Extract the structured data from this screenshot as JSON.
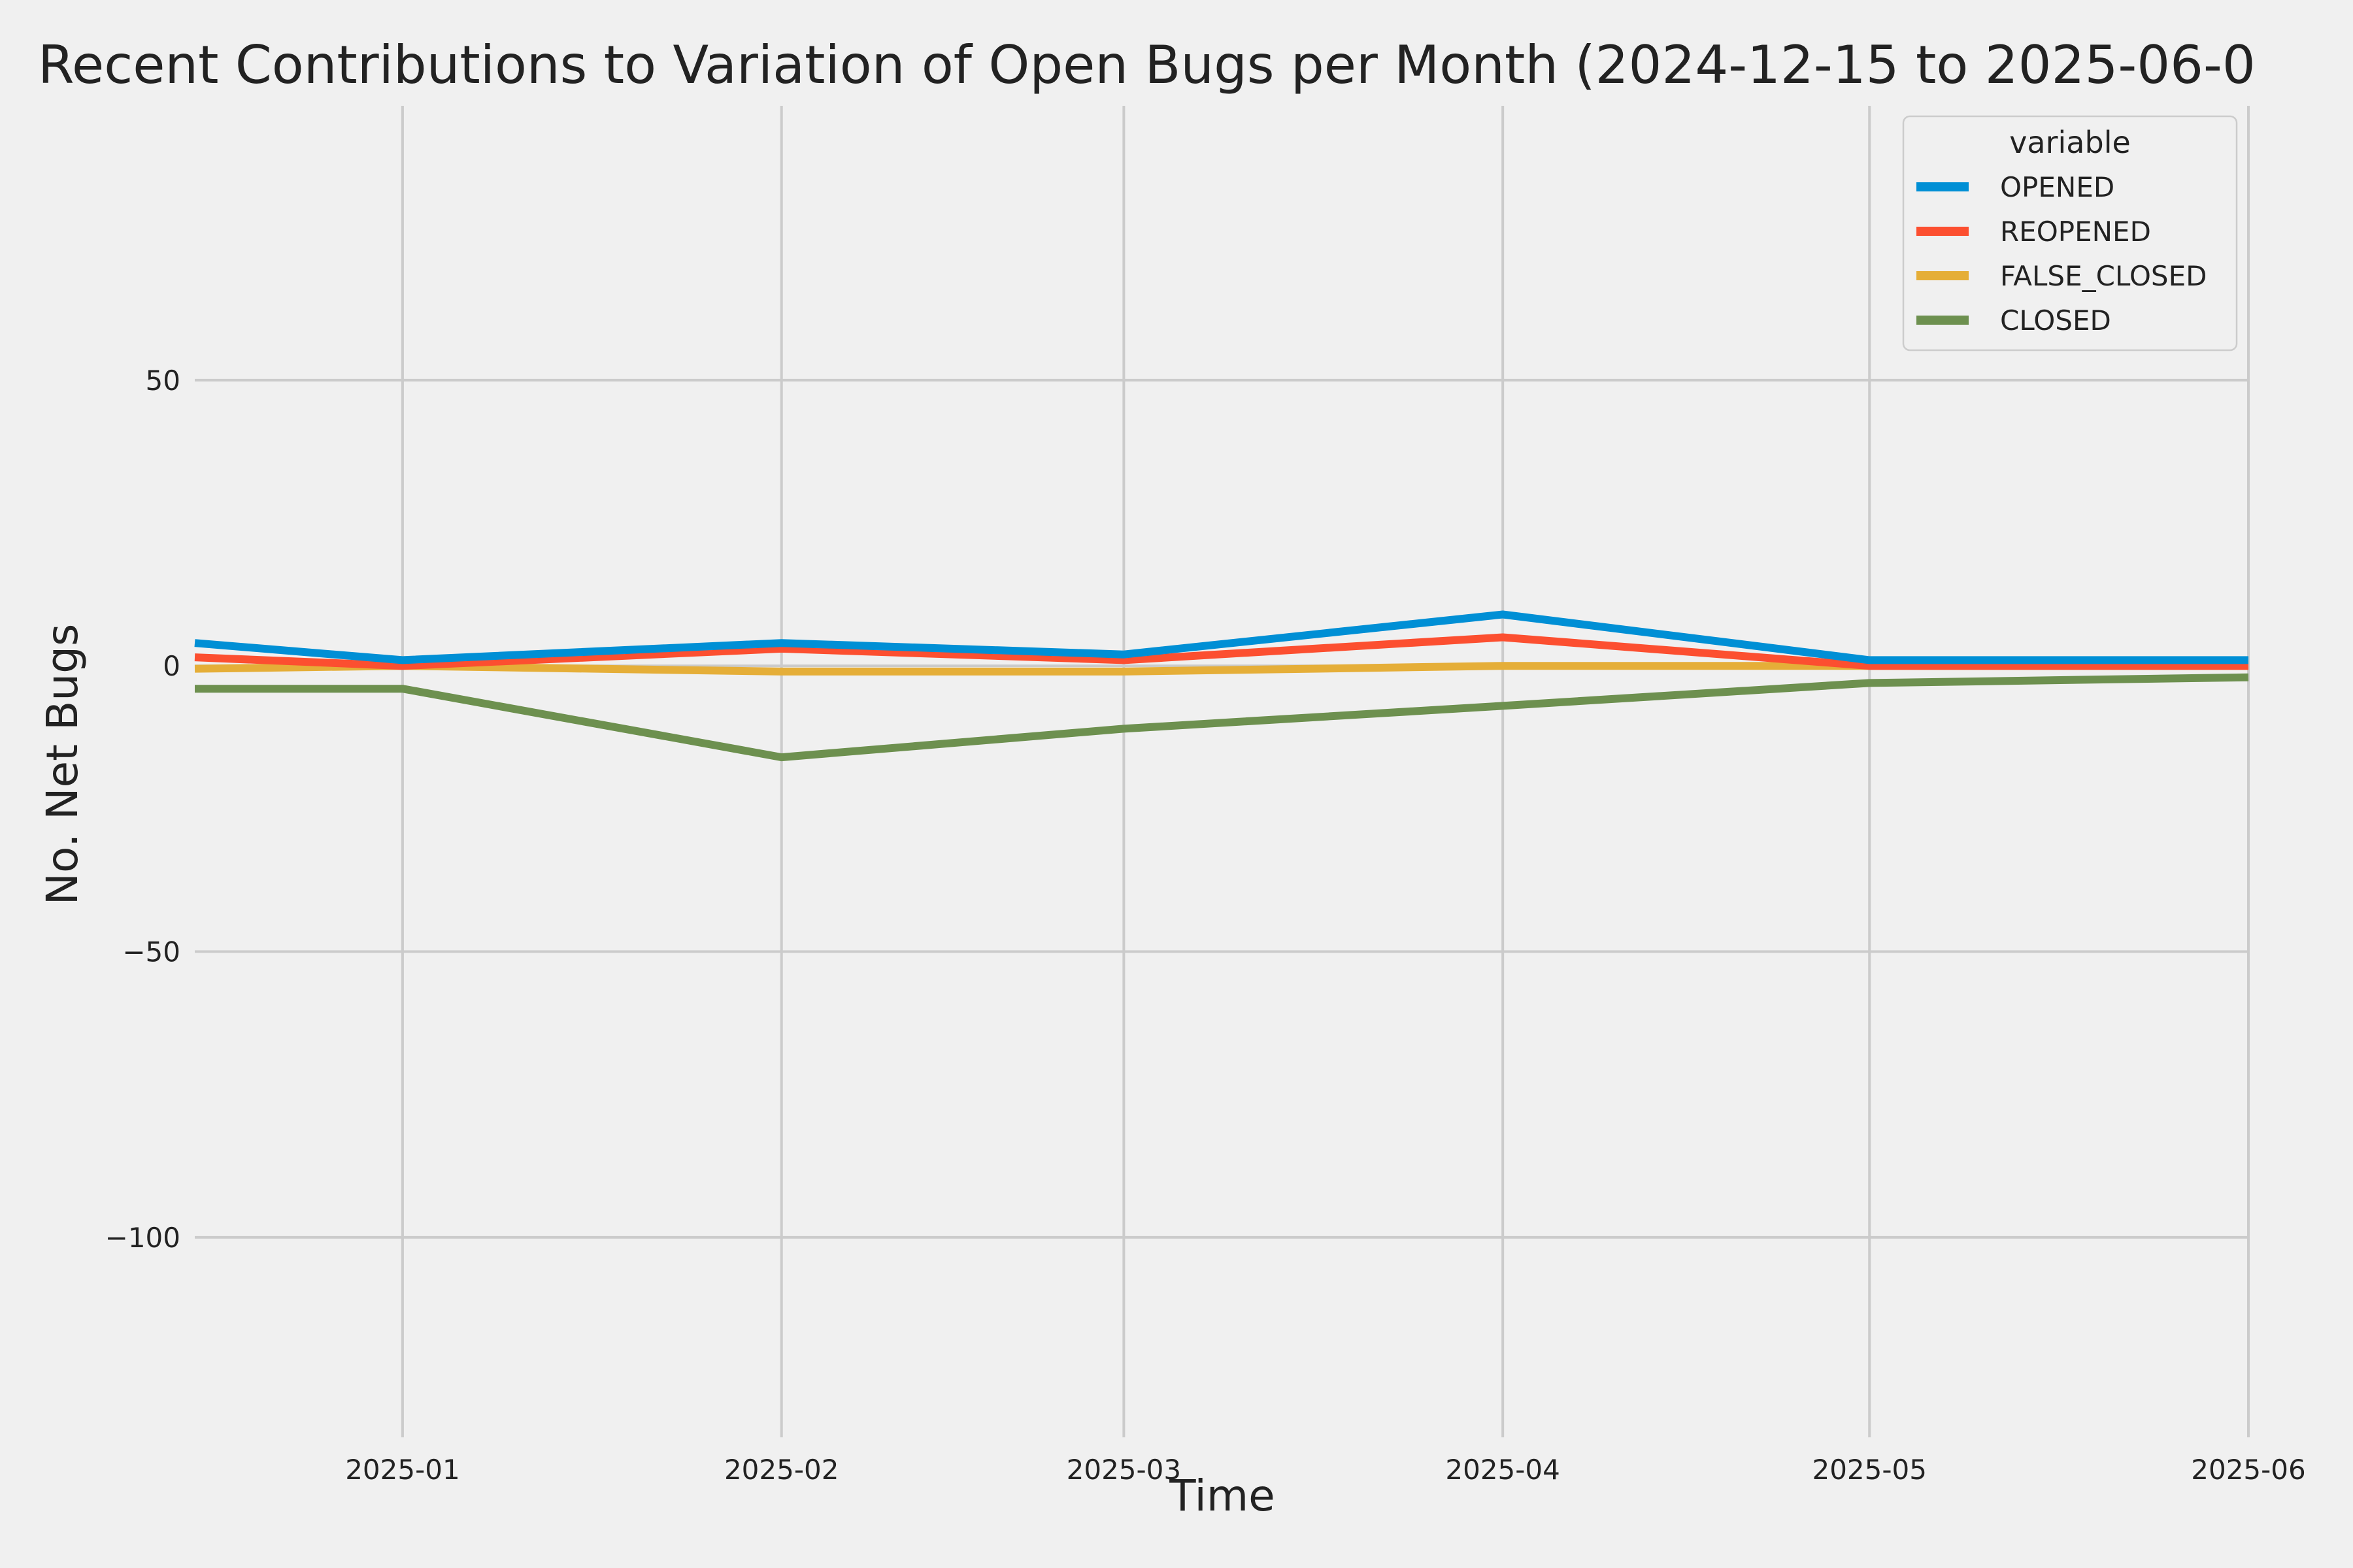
{
  "chart_data": {
    "type": "line",
    "title": "Recent Contributions to Variation of Open Bugs per Month (2024-12-15 to 2025-06-0",
    "xlabel": "Time",
    "ylabel": "No. Net Bugs",
    "x": [
      "2024-12-15",
      "2025-01-01",
      "2025-02-01",
      "2025-03-01",
      "2025-04-01",
      "2025-05-01",
      "2025-06-01"
    ],
    "xlim": [
      "2024-12-15",
      "2025-06-01"
    ],
    "ylim": [
      -135,
      98
    ],
    "xticks": [
      "2025-01-01",
      "2025-02-01",
      "2025-03-01",
      "2025-04-01",
      "2025-05-01",
      "2025-06-01"
    ],
    "xtick_labels": [
      "2025-01",
      "2025-02",
      "2025-03",
      "2025-04",
      "2025-05",
      "2025-06"
    ],
    "yticks": [
      50,
      0,
      -50,
      -100
    ],
    "ytick_labels": [
      "50",
      "0",
      "−50",
      "−100"
    ],
    "grid": true,
    "legend": {
      "title": "variable",
      "position": "top-right"
    },
    "series": [
      {
        "name": "OPENED",
        "color": "#008fd5",
        "values": [
          4,
          1,
          4,
          2,
          9,
          1,
          1
        ]
      },
      {
        "name": "REOPENED",
        "color": "#fc4f30",
        "values": [
          1.5,
          0,
          3,
          1,
          5,
          0,
          0
        ]
      },
      {
        "name": "FALSE_CLOSED",
        "color": "#e5ae38",
        "values": [
          -0.5,
          0,
          -1,
          -1,
          0,
          0,
          0
        ]
      },
      {
        "name": "CLOSED",
        "color": "#6d904f",
        "values": [
          -4,
          -4,
          -16,
          -11,
          -7,
          -3,
          -2
        ]
      }
    ]
  }
}
